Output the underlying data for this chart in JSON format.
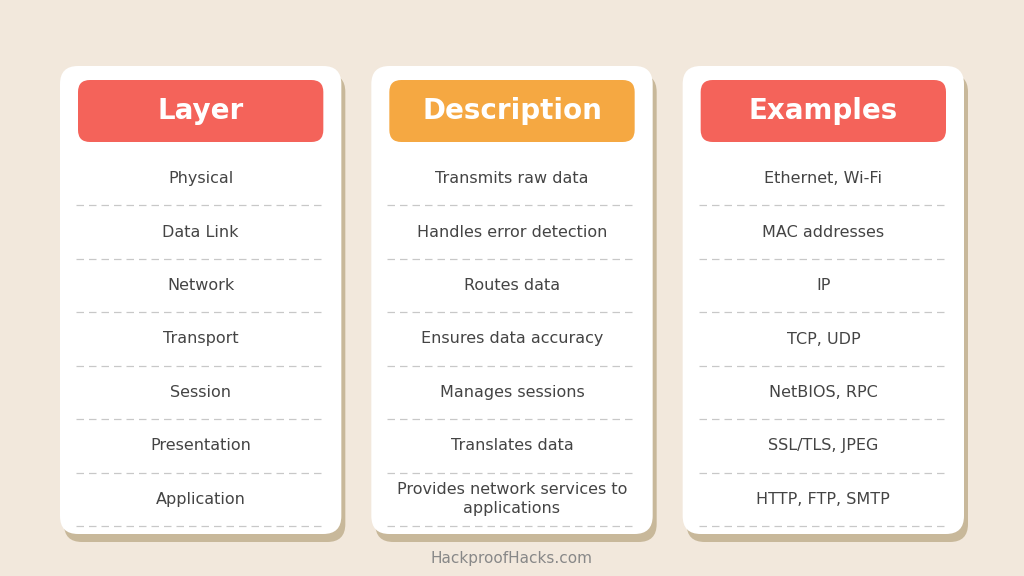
{
  "background_color": "#f2e8dc",
  "card_color": "#ffffff",
  "shadow_color": "#c8b89a",
  "header_colors": [
    "#f4635a",
    "#f5a842",
    "#f4635a"
  ],
  "header_text_color": "#ffffff",
  "header_labels": [
    "Layer",
    "Description",
    "Examples"
  ],
  "row_text_color": "#444444",
  "divider_color": "#c8c8c8",
  "footer_text": "HackproofHacks.com",
  "footer_color": "#888888",
  "layers": [
    "Physical",
    "Data Link",
    "Network",
    "Transport",
    "Session",
    "Presentation",
    "Application"
  ],
  "descriptions": [
    "Transmits raw data",
    "Handles error detection",
    "Routes data",
    "Ensures data accuracy",
    "Manages sessions",
    "Translates data",
    "Provides network services to\napplications"
  ],
  "examples": [
    "Ethernet, Wi-Fi",
    "MAC addresses",
    "IP",
    "TCP, UDP",
    "NetBIOS, RPC",
    "SSL/TLS, JPEG",
    "HTTP, FTP, SMTP"
  ],
  "n_cols": 3,
  "text_fontsize": 11.5,
  "header_fontsize": 20,
  "footer_fontsize": 11
}
